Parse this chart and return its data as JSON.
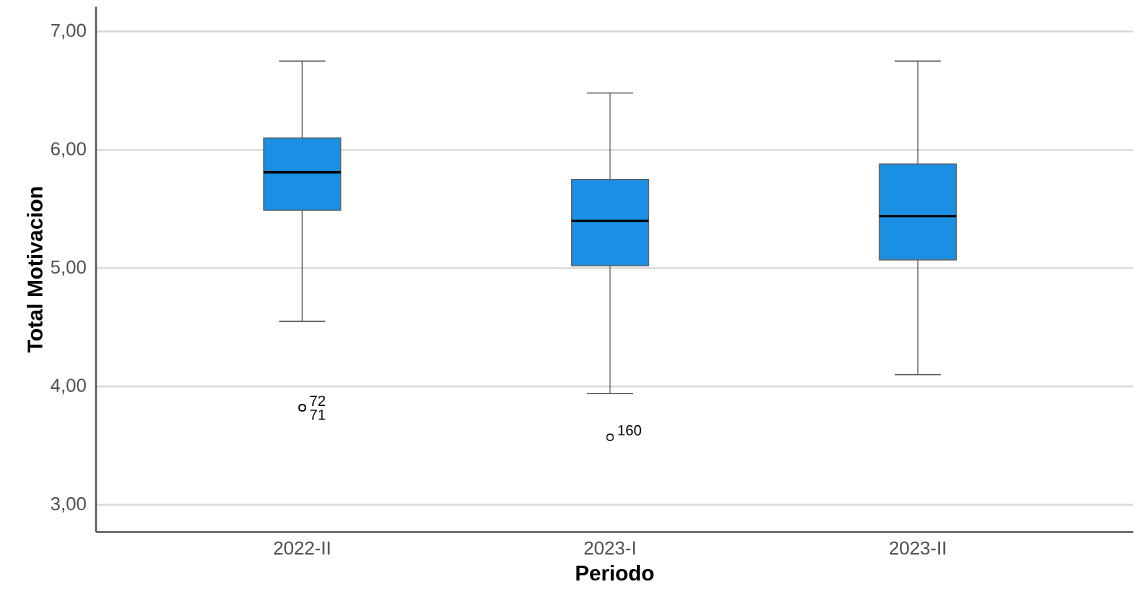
{
  "chart_data": {
    "type": "box",
    "xlabel": "Periodo",
    "ylabel": "Total Motivacion",
    "categories": [
      "2022-II",
      "2023-I",
      "2023-II"
    ],
    "color": "#1a8fe3",
    "boxes": [
      {
        "low": 4.55,
        "q1": 5.49,
        "median": 5.81,
        "q3": 6.1,
        "high": 6.75,
        "outliers": [
          3.82,
          3.82
        ]
      },
      {
        "low": 3.94,
        "q1": 5.02,
        "median": 5.4,
        "q3": 5.75,
        "high": 6.48,
        "outliers": [
          3.57
        ]
      },
      {
        "low": 4.1,
        "q1": 5.07,
        "median": 5.44,
        "q3": 5.88,
        "high": 6.75
      }
    ],
    "ylim": [
      2.77,
      7.21
    ],
    "yticks": [
      {
        "value": 3,
        "label": "3,00"
      },
      {
        "value": 4,
        "label": "4,00"
      },
      {
        "value": 5,
        "label": "5,00"
      },
      {
        "value": 6,
        "label": "6,00"
      },
      {
        "value": 7,
        "label": "7,00"
      }
    ],
    "grid": "y",
    "marker": "circle",
    "annotations": [
      "72",
      "71",
      "160"
    ]
  }
}
